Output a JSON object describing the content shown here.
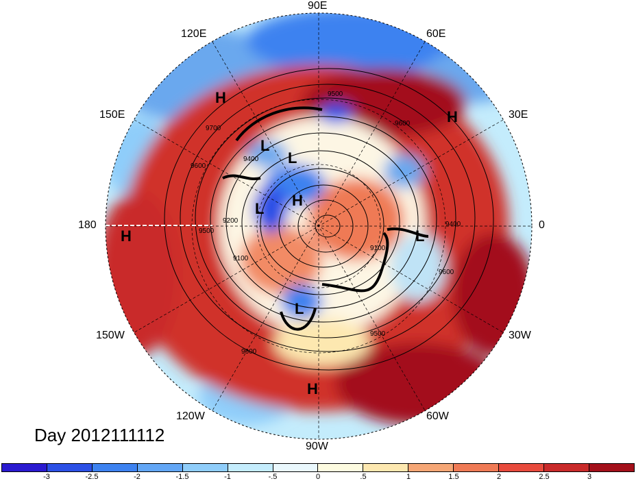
{
  "title_label": "Day 2012111112",
  "longitude_labels": {
    "e90": "90E",
    "e120": "120E",
    "e60": "60E",
    "e150": "150E",
    "e30": "30E",
    "lon180": "180",
    "lon0": "0",
    "w150": "150W",
    "w30": "30W",
    "w120": "120W",
    "w60": "60W",
    "w90": "90W"
  },
  "pressure_markers": [
    {
      "kind": "H"
    },
    {
      "kind": "H"
    },
    {
      "kind": "H"
    },
    {
      "kind": "H"
    },
    {
      "kind": "H"
    },
    {
      "kind": "L"
    },
    {
      "kind": "L"
    },
    {
      "kind": "L"
    },
    {
      "kind": "L"
    },
    {
      "kind": "L"
    }
  ],
  "contour_labels": [
    "9500",
    "9700",
    "9600",
    "9400",
    "9200",
    "9100",
    "9500",
    "9600",
    "9400",
    "9600",
    "9500",
    "9600",
    "9100"
  ],
  "colorbar": {
    "colors": [
      "#2a1ad0",
      "#2b50e6",
      "#3d82f0",
      "#62a6f5",
      "#8fcdfa",
      "#c4ecfc",
      "#eaf8fd",
      "#fdfbe0",
      "#fde8b0",
      "#f5a675",
      "#ef7a55",
      "#e84a3c",
      "#c92a2a",
      "#a3101a"
    ],
    "ticks": [
      "-3",
      "-2.5",
      "-2",
      "-1.5",
      "-1",
      "-.5",
      "0",
      ".5",
      "1",
      "1.5",
      "2",
      "2.5",
      "3"
    ]
  },
  "theme": {
    "hot_strong": "#a3101a",
    "hot": "#d0302c",
    "warm": "#f28b65",
    "neutral": "#fdf6e4",
    "cool": "#bfe3f6",
    "cold": "#6aa8ee",
    "cold_strong": "#2b50e6"
  }
}
